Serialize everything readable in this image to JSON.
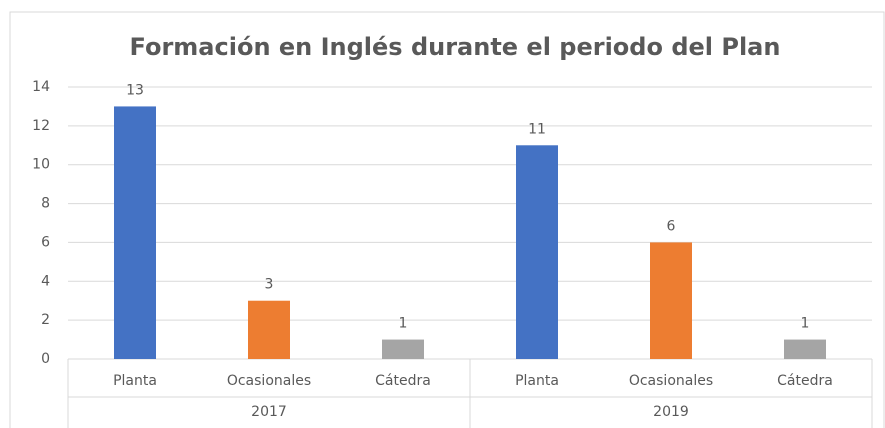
{
  "chart_data": {
    "type": "bar",
    "title": "Formación en Inglés durante el periodo del Plan",
    "categories": [
      "Planta",
      "Ocasionales",
      "Cátedra",
      "Planta",
      "Ocasionales",
      "Cátedra"
    ],
    "groups": [
      "2017",
      "2019"
    ],
    "values": [
      13,
      3,
      1,
      11,
      6,
      1
    ],
    "colors": [
      "#4472c4",
      "#ed7d31",
      "#a5a5a5",
      "#4472c4",
      "#ed7d31",
      "#a5a5a5"
    ],
    "ylim": [
      0,
      14
    ],
    "yticks": [
      0,
      2,
      4,
      6,
      8,
      10,
      12,
      14
    ],
    "grid": true
  }
}
